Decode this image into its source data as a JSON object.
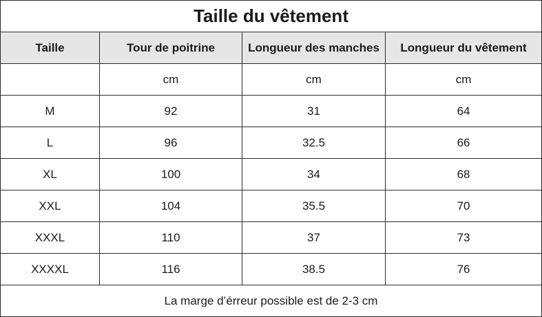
{
  "title": "Taille du vêtement",
  "headers": [
    "Taille",
    "Tour de poitrine",
    "Longueur des manches",
    "Longueur du vêtement"
  ],
  "units": [
    "",
    "cm",
    "cm",
    "cm"
  ],
  "rows": [
    [
      "M",
      "92",
      "31",
      "64"
    ],
    [
      "L",
      "96",
      "32.5",
      "66"
    ],
    [
      "XL",
      "100",
      "34",
      "68"
    ],
    [
      "XXL",
      "104",
      "35.5",
      "70"
    ],
    [
      "XXXL",
      "110",
      "37",
      "73"
    ],
    [
      "XXXXL",
      "116",
      "38.5",
      "76"
    ]
  ],
  "note": "La marge d’érreur possible est de 2-3 cm",
  "colors": {
    "header_bg": "#e6e6e6",
    "border": "#2b2b2b"
  }
}
